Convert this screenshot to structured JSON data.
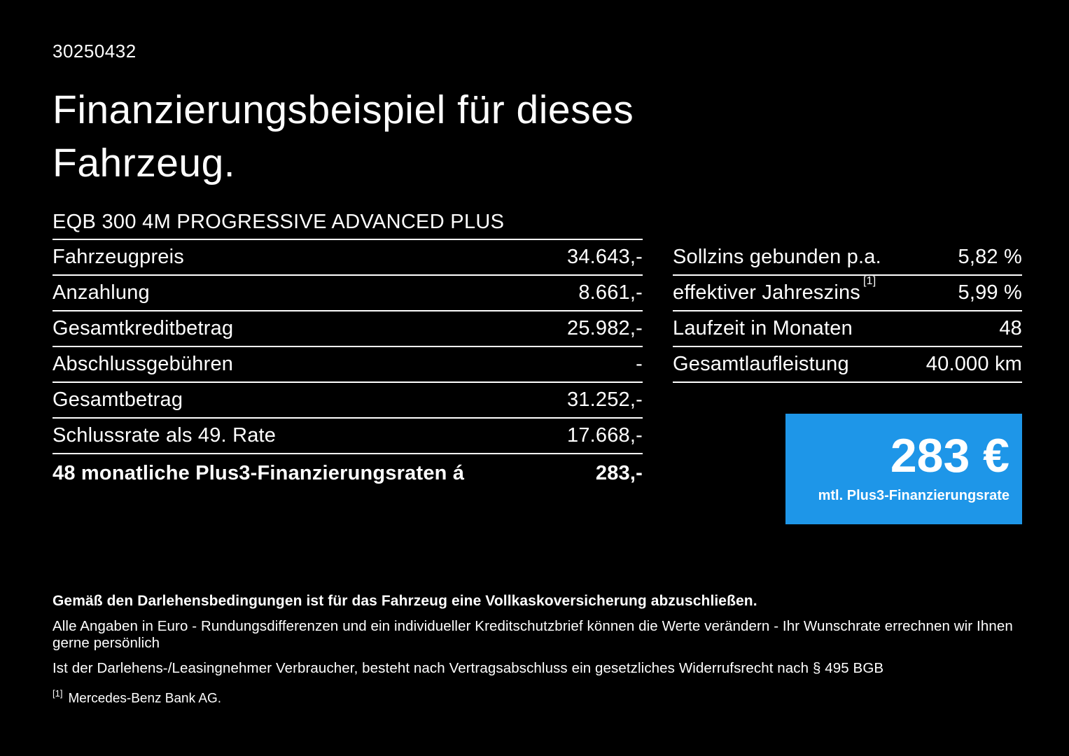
{
  "document_id": "30250432",
  "title": {
    "line1": "Finanzierungsbeispiel für dieses",
    "line2": "Fahrzeug."
  },
  "vehicle_model": "EQB 300 4M PROGRESSIVE ADVANCED PLUS",
  "finance_table": {
    "rows": [
      {
        "label": "Fahrzeugpreis",
        "value": "34.643,-"
      },
      {
        "label": "Anzahlung",
        "value": "8.661,-"
      },
      {
        "label": "Gesamtkreditbetrag",
        "value": "25.982,-"
      },
      {
        "label": "Abschlussgebühren",
        "value": "-"
      },
      {
        "label": "Gesamtbetrag",
        "value": "31.252,-"
      },
      {
        "label": "Schlussrate als 49. Rate",
        "value": "17.668,-"
      },
      {
        "label": "48 monatliche Plus3-Finanzierungsraten á",
        "value": "283,-"
      }
    ]
  },
  "conditions_table": {
    "rows": [
      {
        "label": "Sollzins gebunden p.a.",
        "sup": "",
        "value": "5,82 %"
      },
      {
        "label": "effektiver Jahreszins",
        "sup": "[1]",
        "value": "5,99 %"
      },
      {
        "label": "Laufzeit in Monaten",
        "sup": "",
        "value": "48"
      },
      {
        "label": "Gesamtlaufleistung",
        "sup": "",
        "value": "40.000 km"
      }
    ]
  },
  "rate_box": {
    "amount": "283 €",
    "caption": "mtl. Plus3-Finanzierungsrate",
    "background": "#1e96e8"
  },
  "footnotes": {
    "insurance": "Gemäß den Darlehensbedingungen ist für das Fahrzeug eine Vollkaskoversicherung abzuschließen.",
    "disclaimer1": "Alle Angaben in Euro - Rundungsdifferenzen und ein individueller Kreditschutzbrief können die Werte verändern - Ihr Wunschrate errechnen wir Ihnen gerne persönlich",
    "disclaimer2": "Ist der Darlehens-/Leasingnehmer Verbraucher, besteht nach Vertragsabschluss ein gesetzliches Widerrufsrecht nach § 495 BGB",
    "ref_marker": "[1]",
    "ref_text": "Mercedes-Benz Bank AG."
  }
}
